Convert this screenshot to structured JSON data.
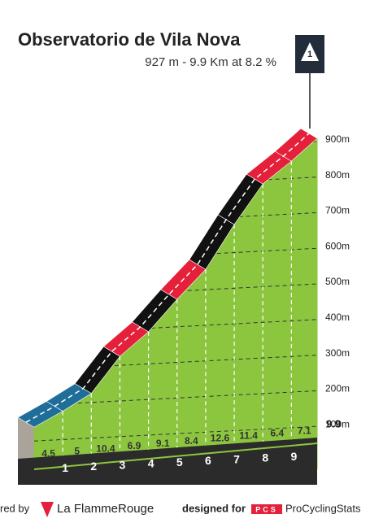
{
  "chart_data": {
    "type": "climb-profile",
    "title": "Observatorio de Vila Nova",
    "subtitle": "927 m - 9.9 Km at 8.2 %",
    "category": "1",
    "x": [
      0,
      1,
      2,
      3,
      4,
      5,
      6,
      7,
      8,
      9,
      9.9
    ],
    "series": [
      {
        "values": [
          116,
          161,
          211,
          315,
          384,
          475,
          559,
          685,
          799,
          863,
          927
        ],
        "color": "#8cc63f"
      }
    ],
    "gradients": [
      4.5,
      5.0,
      10.4,
      6.9,
      9.1,
      8.4,
      12.6,
      11.4,
      6.4,
      7.1
    ],
    "segment_colors": [
      "#1f6e9a",
      "#1f6e9a",
      "#111111",
      "#e5203a",
      "#111111",
      "#e5203a",
      "#111111",
      "#111111",
      "#e5203a",
      "#e5203a"
    ],
    "xlim": [
      0,
      9.9
    ],
    "xticks": [
      1,
      2,
      3,
      4,
      5,
      6,
      7,
      8,
      9,
      9.9
    ],
    "ylim": [
      0,
      950
    ],
    "yticks": [
      {
        "value": 100,
        "label": "100m"
      },
      {
        "value": 200,
        "label": "200m"
      },
      {
        "value": 300,
        "label": "300m"
      },
      {
        "value": 400,
        "label": "400m"
      },
      {
        "value": 500,
        "label": "500m"
      },
      {
        "value": 600,
        "label": "600m"
      },
      {
        "value": 700,
        "label": "700m"
      },
      {
        "value": 800,
        "label": "800m"
      },
      {
        "value": 900,
        "label": "900m"
      }
    ],
    "grid": true
  },
  "footer": {
    "powered": "red by",
    "brand": "La FlammeRouge",
    "designed": "designed for",
    "pcs_logo": "PCS",
    "pcs": "ProCyclingStats"
  }
}
